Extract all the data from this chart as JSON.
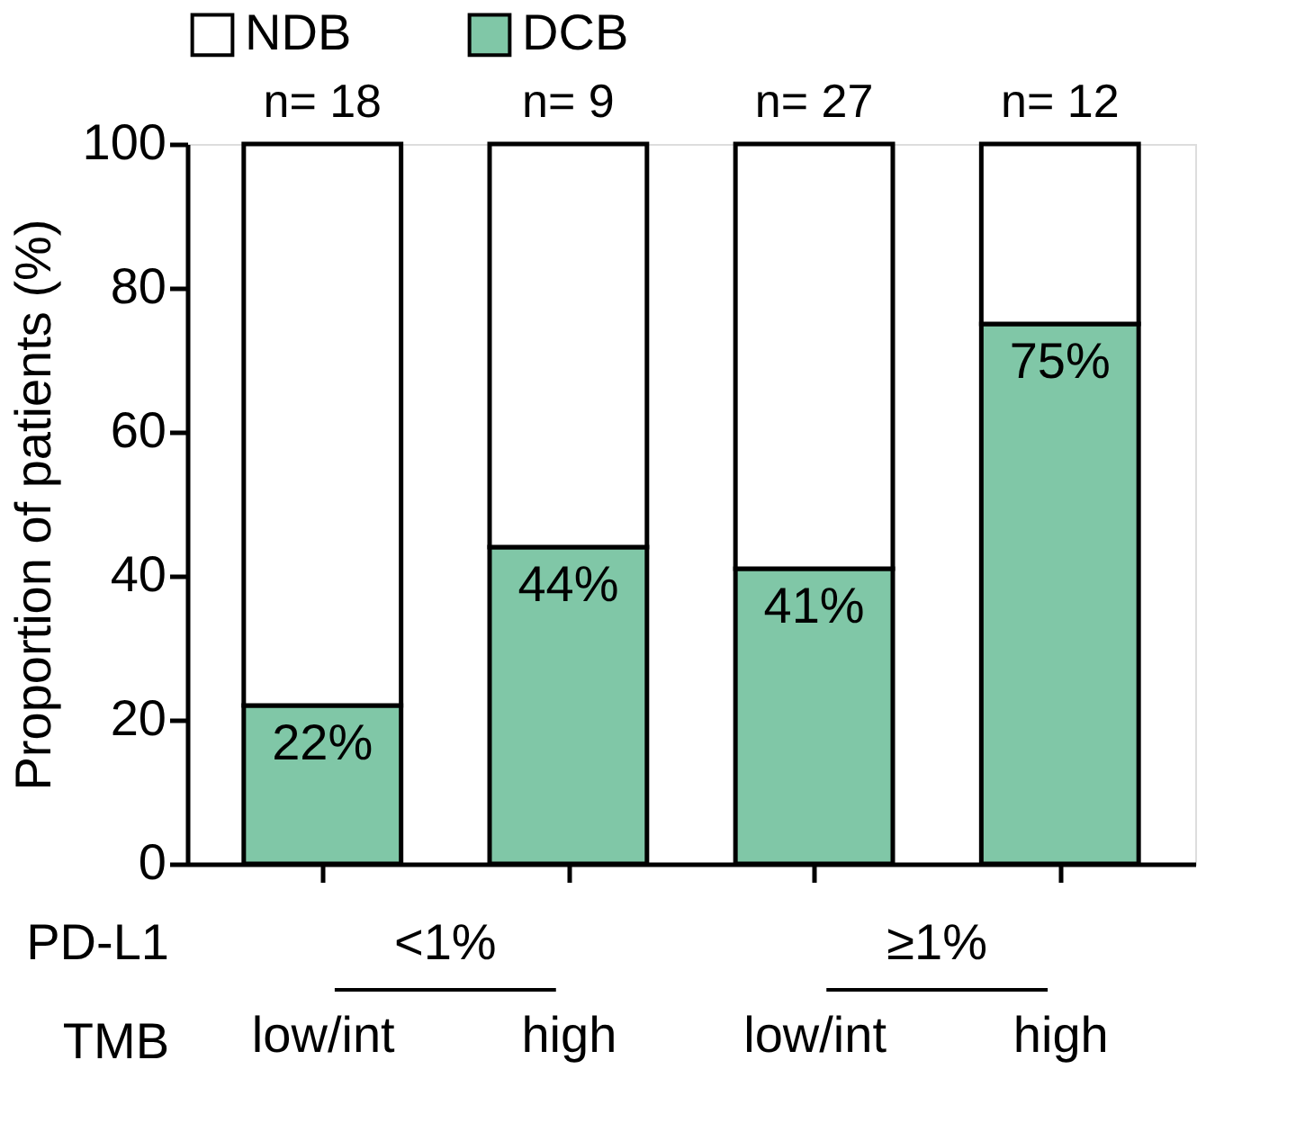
{
  "chart_data": {
    "type": "bar",
    "stacked": true,
    "ylabel": "Proportion of patients (%)",
    "categories": [
      "low/int",
      "high",
      "low/int",
      "high"
    ],
    "series": [
      {
        "name": "DCB",
        "color": "#80c7a7",
        "values": [
          22,
          44,
          41,
          75
        ],
        "value_labels": [
          "22%",
          "44%",
          "41%",
          "75%"
        ]
      },
      {
        "name": "NDB",
        "color": "#ffffff",
        "values": [
          78,
          56,
          59,
          25
        ]
      }
    ],
    "ylim": [
      0,
      100
    ],
    "yticks": [
      0,
      20,
      40,
      60,
      80,
      100
    ],
    "grid": false,
    "legend": "top",
    "annotations": [
      "n= 18",
      "n= 9",
      "n= 27",
      "n= 12",
      "PD-L1",
      "<1%",
      "≥1%",
      "TMB"
    ]
  }
}
